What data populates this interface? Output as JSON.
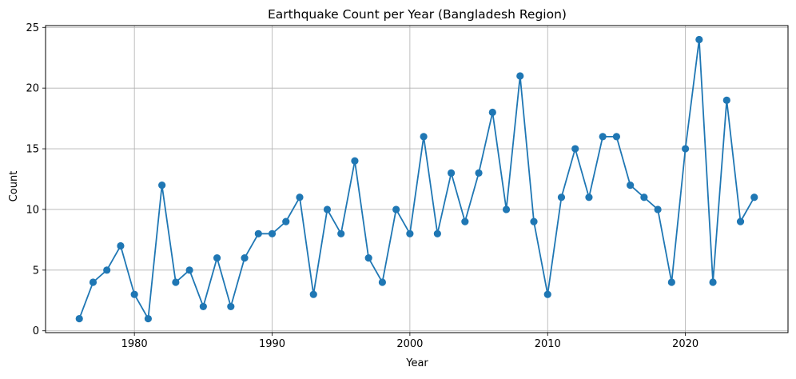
{
  "chart_data": {
    "type": "line",
    "title": "Earthquake Count per Year (Bangladesh Region)",
    "xlabel": "Year",
    "ylabel": "Count",
    "xlim": [
      1973.55,
      2027.45
    ],
    "ylim": [
      -0.15,
      25.15
    ],
    "xticks": [
      1980,
      1990,
      2000,
      2010,
      2020
    ],
    "yticks": [
      0,
      5,
      10,
      15,
      20,
      25
    ],
    "grid": true,
    "marker": "circle",
    "color": "#1f77b4",
    "series": [
      {
        "name": "Count",
        "x": [
          1976,
          1977,
          1978,
          1979,
          1980,
          1981,
          1982,
          1983,
          1984,
          1985,
          1986,
          1987,
          1988,
          1989,
          1990,
          1991,
          1992,
          1993,
          1994,
          1995,
          1996,
          1997,
          1998,
          1999,
          2000,
          2001,
          2002,
          2003,
          2004,
          2005,
          2006,
          2007,
          2008,
          2009,
          2010,
          2011,
          2012,
          2013,
          2014,
          2015,
          2016,
          2017,
          2018,
          2019,
          2020,
          2021,
          2022,
          2023,
          2024,
          2025
        ],
        "values": [
          1,
          4,
          5,
          7,
          3,
          1,
          12,
          4,
          5,
          2,
          6,
          2,
          6,
          8,
          8,
          9,
          11,
          3,
          10,
          8,
          14,
          6,
          4,
          10,
          8,
          16,
          8,
          13,
          9,
          13,
          18,
          10,
          21,
          9,
          3,
          11,
          15,
          11,
          16,
          16,
          12,
          11,
          10,
          4,
          15,
          24,
          4,
          19,
          9,
          11
        ]
      }
    ]
  }
}
